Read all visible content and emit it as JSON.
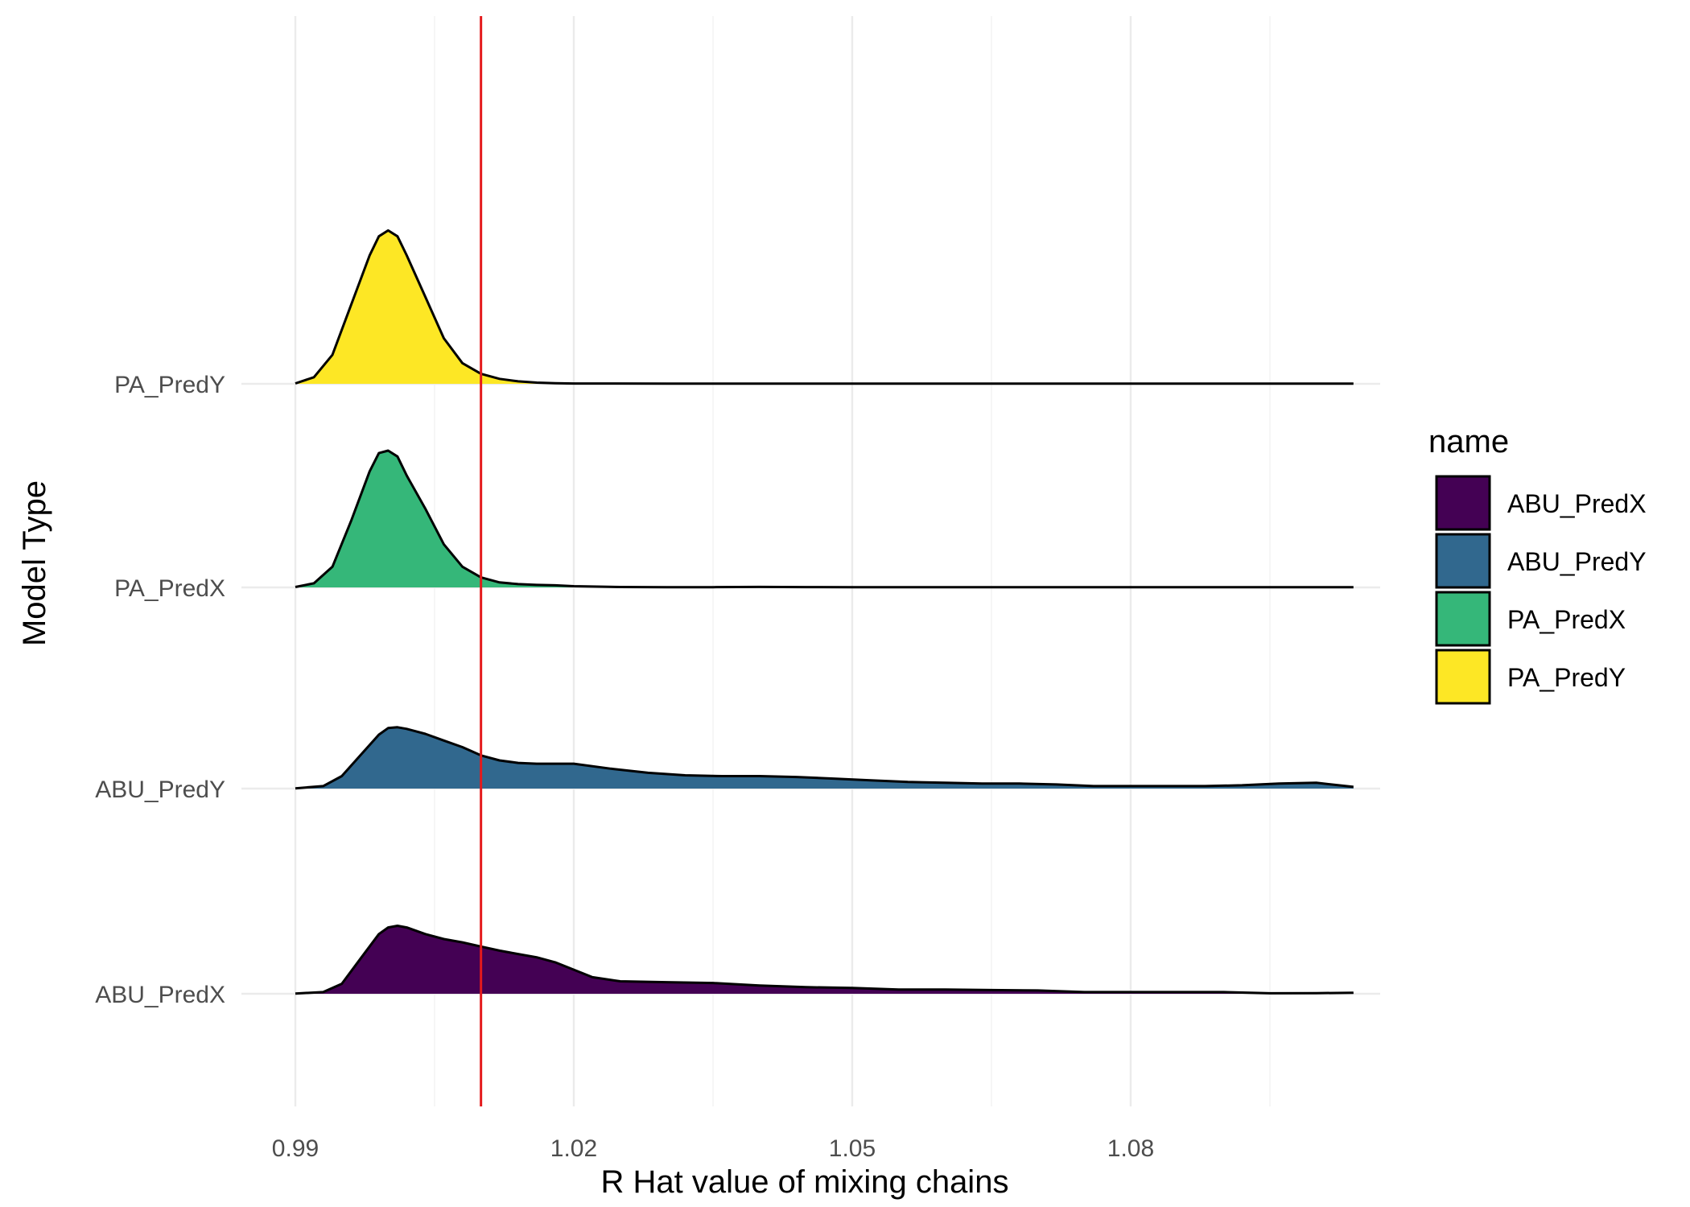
{
  "chart_data": {
    "type": "ridgeline",
    "xlabel": "R Hat value of mixing chains",
    "ylabel": "Model Type",
    "xlim": [
      0.99,
      1.105
    ],
    "x_ticks": [
      0.99,
      1.02,
      1.05,
      1.08
    ],
    "x_tick_labels": [
      "0.99",
      "1.02",
      "1.05",
      "1.08"
    ],
    "reference_line": {
      "x": 1.01,
      "color": "#e41a1c"
    },
    "grid": true,
    "legend": {
      "title": "name",
      "position": "right"
    },
    "categories": [
      "ABU_PredX",
      "ABU_PredY",
      "PA_PredX",
      "PA_PredY"
    ],
    "series": [
      {
        "name": "ABU_PredX",
        "color": "#440154",
        "points": [
          [
            0.99,
            0.003
          ],
          [
            0.993,
            0.02
          ],
          [
            0.995,
            0.12
          ],
          [
            0.997,
            0.42
          ],
          [
            0.999,
            0.72
          ],
          [
            1.0,
            0.8
          ],
          [
            1.001,
            0.82
          ],
          [
            1.002,
            0.8
          ],
          [
            1.004,
            0.72
          ],
          [
            1.006,
            0.66
          ],
          [
            1.008,
            0.62
          ],
          [
            1.01,
            0.57
          ],
          [
            1.012,
            0.52
          ],
          [
            1.014,
            0.48
          ],
          [
            1.016,
            0.44
          ],
          [
            1.018,
            0.38
          ],
          [
            1.02,
            0.29
          ],
          [
            1.022,
            0.2
          ],
          [
            1.025,
            0.15
          ],
          [
            1.03,
            0.14
          ],
          [
            1.035,
            0.13
          ],
          [
            1.04,
            0.1
          ],
          [
            1.045,
            0.08
          ],
          [
            1.05,
            0.07
          ],
          [
            1.055,
            0.05
          ],
          [
            1.06,
            0.05
          ],
          [
            1.065,
            0.045
          ],
          [
            1.07,
            0.04
          ],
          [
            1.075,
            0.02
          ],
          [
            1.08,
            0.02
          ],
          [
            1.085,
            0.02
          ],
          [
            1.09,
            0.02
          ],
          [
            1.095,
            0.006
          ],
          [
            1.1,
            0.008
          ],
          [
            1.104,
            0.012
          ]
        ]
      },
      {
        "name": "ABU_PredY",
        "color": "#31688e",
        "points": [
          [
            0.99,
            0.003
          ],
          [
            0.993,
            0.03
          ],
          [
            0.995,
            0.15
          ],
          [
            0.997,
            0.4
          ],
          [
            0.999,
            0.65
          ],
          [
            1.0,
            0.73
          ],
          [
            1.001,
            0.74
          ],
          [
            1.002,
            0.72
          ],
          [
            1.004,
            0.66
          ],
          [
            1.006,
            0.58
          ],
          [
            1.008,
            0.5
          ],
          [
            1.01,
            0.4
          ],
          [
            1.012,
            0.34
          ],
          [
            1.014,
            0.31
          ],
          [
            1.016,
            0.3
          ],
          [
            1.018,
            0.3
          ],
          [
            1.02,
            0.3
          ],
          [
            1.024,
            0.24
          ],
          [
            1.028,
            0.19
          ],
          [
            1.032,
            0.16
          ],
          [
            1.036,
            0.15
          ],
          [
            1.04,
            0.15
          ],
          [
            1.044,
            0.14
          ],
          [
            1.048,
            0.12
          ],
          [
            1.052,
            0.1
          ],
          [
            1.056,
            0.08
          ],
          [
            1.06,
            0.07
          ],
          [
            1.064,
            0.06
          ],
          [
            1.068,
            0.06
          ],
          [
            1.072,
            0.05
          ],
          [
            1.076,
            0.03
          ],
          [
            1.08,
            0.03
          ],
          [
            1.084,
            0.03
          ],
          [
            1.088,
            0.03
          ],
          [
            1.092,
            0.04
          ],
          [
            1.096,
            0.06
          ],
          [
            1.1,
            0.07
          ],
          [
            1.104,
            0.02
          ]
        ]
      },
      {
        "name": "PA_PredX",
        "color": "#35b779",
        "points": [
          [
            0.99,
            0.005
          ],
          [
            0.992,
            0.05
          ],
          [
            0.994,
            0.25
          ],
          [
            0.996,
            0.8
          ],
          [
            0.998,
            1.4
          ],
          [
            0.999,
            1.62
          ],
          [
            1.0,
            1.65
          ],
          [
            1.001,
            1.58
          ],
          [
            1.002,
            1.35
          ],
          [
            1.004,
            0.95
          ],
          [
            1.006,
            0.52
          ],
          [
            1.008,
            0.25
          ],
          [
            1.01,
            0.12
          ],
          [
            1.012,
            0.06
          ],
          [
            1.014,
            0.04
          ],
          [
            1.016,
            0.03
          ],
          [
            1.018,
            0.025
          ],
          [
            1.02,
            0.015
          ],
          [
            1.025,
            0.005
          ],
          [
            1.03,
            0.003
          ],
          [
            1.035,
            0.003
          ],
          [
            1.04,
            0.006
          ],
          [
            1.045,
            0.004
          ],
          [
            1.05,
            0.002
          ],
          [
            1.06,
            0.002
          ],
          [
            1.07,
            0.002
          ],
          [
            1.08,
            0.002
          ],
          [
            1.09,
            0.002
          ],
          [
            1.1,
            0.002
          ],
          [
            1.104,
            0.002
          ]
        ]
      },
      {
        "name": "PA_PredY",
        "color": "#fde725",
        "points": [
          [
            0.99,
            0.005
          ],
          [
            0.992,
            0.08
          ],
          [
            0.994,
            0.35
          ],
          [
            0.996,
            0.95
          ],
          [
            0.998,
            1.55
          ],
          [
            0.999,
            1.78
          ],
          [
            1.0,
            1.85
          ],
          [
            1.001,
            1.78
          ],
          [
            1.002,
            1.55
          ],
          [
            1.004,
            1.05
          ],
          [
            1.006,
            0.55
          ],
          [
            1.008,
            0.25
          ],
          [
            1.01,
            0.12
          ],
          [
            1.012,
            0.06
          ],
          [
            1.014,
            0.03
          ],
          [
            1.016,
            0.015
          ],
          [
            1.018,
            0.008
          ],
          [
            1.02,
            0.004
          ],
          [
            1.03,
            0.002
          ],
          [
            1.04,
            0.002
          ],
          [
            1.05,
            0.002
          ],
          [
            1.06,
            0.002
          ],
          [
            1.07,
            0.002
          ],
          [
            1.08,
            0.002
          ],
          [
            1.09,
            0.002
          ],
          [
            1.1,
            0.002
          ],
          [
            1.104,
            0.002
          ]
        ]
      }
    ]
  }
}
